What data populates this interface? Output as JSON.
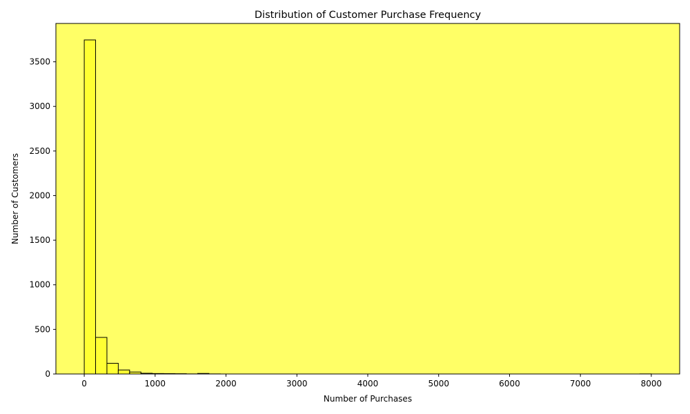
{
  "colors": {
    "plot_background": "#ffff66",
    "bar_fill": "#ffff33",
    "bar_edge": "#000000",
    "axis": "#000000"
  },
  "chart_data": {
    "type": "histogram",
    "title": "Distribution of Customer Purchase Frequency",
    "xlabel": "Number of Purchases",
    "ylabel": "Number of Customers",
    "xlim": [
      -400,
      8400
    ],
    "ylim": [
      0,
      3930
    ],
    "xticks": [
      0,
      1000,
      2000,
      3000,
      4000,
      5000,
      6000,
      7000,
      8000
    ],
    "xtick_labels": [
      "0",
      "1000",
      "2000",
      "3000",
      "4000",
      "5000",
      "6000",
      "7000",
      "8000"
    ],
    "yticks": [
      0,
      500,
      1000,
      1500,
      2000,
      2500,
      3000,
      3500
    ],
    "ytick_labels": [
      "0",
      "500",
      "1000",
      "1500",
      "2000",
      "2500",
      "3000",
      "3500"
    ],
    "bins": [
      {
        "x0": 0,
        "x1": 160,
        "count": 3745
      },
      {
        "x0": 160,
        "x1": 320,
        "count": 410
      },
      {
        "x0": 320,
        "x1": 480,
        "count": 120
      },
      {
        "x0": 480,
        "x1": 640,
        "count": 45
      },
      {
        "x0": 640,
        "x1": 800,
        "count": 22
      },
      {
        "x0": 800,
        "x1": 960,
        "count": 8
      },
      {
        "x0": 960,
        "x1": 1120,
        "count": 5
      },
      {
        "x0": 1120,
        "x1": 1280,
        "count": 4
      },
      {
        "x0": 1280,
        "x1": 1440,
        "count": 3
      },
      {
        "x0": 1440,
        "x1": 1600,
        "count": 1
      },
      {
        "x0": 1600,
        "x1": 1760,
        "count": 6
      },
      {
        "x0": 1760,
        "x1": 1920,
        "count": 1
      },
      {
        "x0": 1920,
        "x1": 2080,
        "count": 0
      },
      {
        "x0": 7840,
        "x1": 8000,
        "count": 1
      }
    ]
  }
}
